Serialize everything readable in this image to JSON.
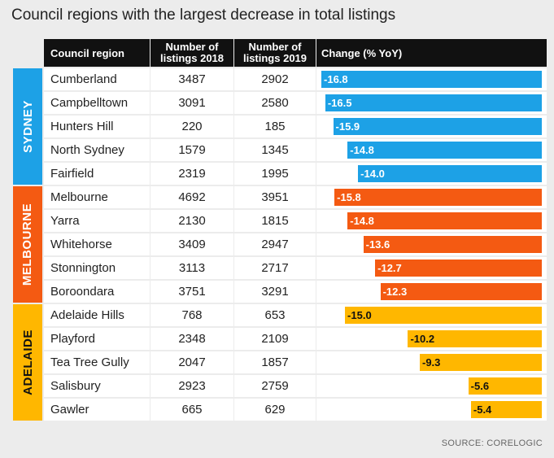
{
  "title": "Council regions with the largest decrease in total listings",
  "headers": {
    "region": "Council region",
    "listings2018": "Number of listings 2018",
    "listings2019": "Number of listings 2019",
    "change": "Change (% YoY)"
  },
  "colors": {
    "Sydney": "#1da1e6",
    "Melbourne": "#f45a12",
    "Adelaide": "#ffb700"
  },
  "source": "SOURCE: CORELOGIC",
  "chart_data": {
    "type": "table",
    "title": "Council regions with the largest decrease in total listings",
    "columns": [
      "Council region",
      "Number of listings 2018",
      "Number of listings 2019",
      "Change (% YoY)"
    ],
    "groups": [
      {
        "name": "SYDNEY",
        "key": "Sydney",
        "rows": [
          {
            "region": "Cumberland",
            "y2018": 3487,
            "y2019": 2902,
            "change": -16.8
          },
          {
            "region": "Campbelltown",
            "y2018": 3091,
            "y2019": 2580,
            "change": -16.5
          },
          {
            "region": "Hunters Hill",
            "y2018": 220,
            "y2019": 185,
            "change": -15.9
          },
          {
            "region": "North Sydney",
            "y2018": 1579,
            "y2019": 1345,
            "change": -14.8
          },
          {
            "region": "Fairfield",
            "y2018": 2319,
            "y2019": 1995,
            "change": -14.0
          }
        ]
      },
      {
        "name": "MELBOURNE",
        "key": "Melbourne",
        "rows": [
          {
            "region": "Melbourne",
            "y2018": 4692,
            "y2019": 3951,
            "change": -15.8
          },
          {
            "region": "Yarra",
            "y2018": 2130,
            "y2019": 1815,
            "change": -14.8
          },
          {
            "region": "Whitehorse",
            "y2018": 3409,
            "y2019": 2947,
            "change": -13.6
          },
          {
            "region": "Stonnington",
            "y2018": 3113,
            "y2019": 2717,
            "change": -12.7
          },
          {
            "region": "Boroondara",
            "y2018": 3751,
            "y2019": 3291,
            "change": -12.3
          }
        ]
      },
      {
        "name": "ADELAIDE",
        "key": "Adelaide",
        "rows": [
          {
            "region": "Adelaide Hills",
            "y2018": 768,
            "y2019": 653,
            "change": -15.0
          },
          {
            "region": "Playford",
            "y2018": 2348,
            "y2019": 2109,
            "change": -10.2
          },
          {
            "region": "Tea Tree Gully",
            "y2018": 2047,
            "y2019": 1857,
            "change": -9.3
          },
          {
            "region": "Salisbury",
            "y2018": 2923,
            "y2019": 2759,
            "change": -5.6
          },
          {
            "region": "Gawler",
            "y2018": 665,
            "y2019": 629,
            "change": -5.4
          }
        ]
      }
    ]
  }
}
